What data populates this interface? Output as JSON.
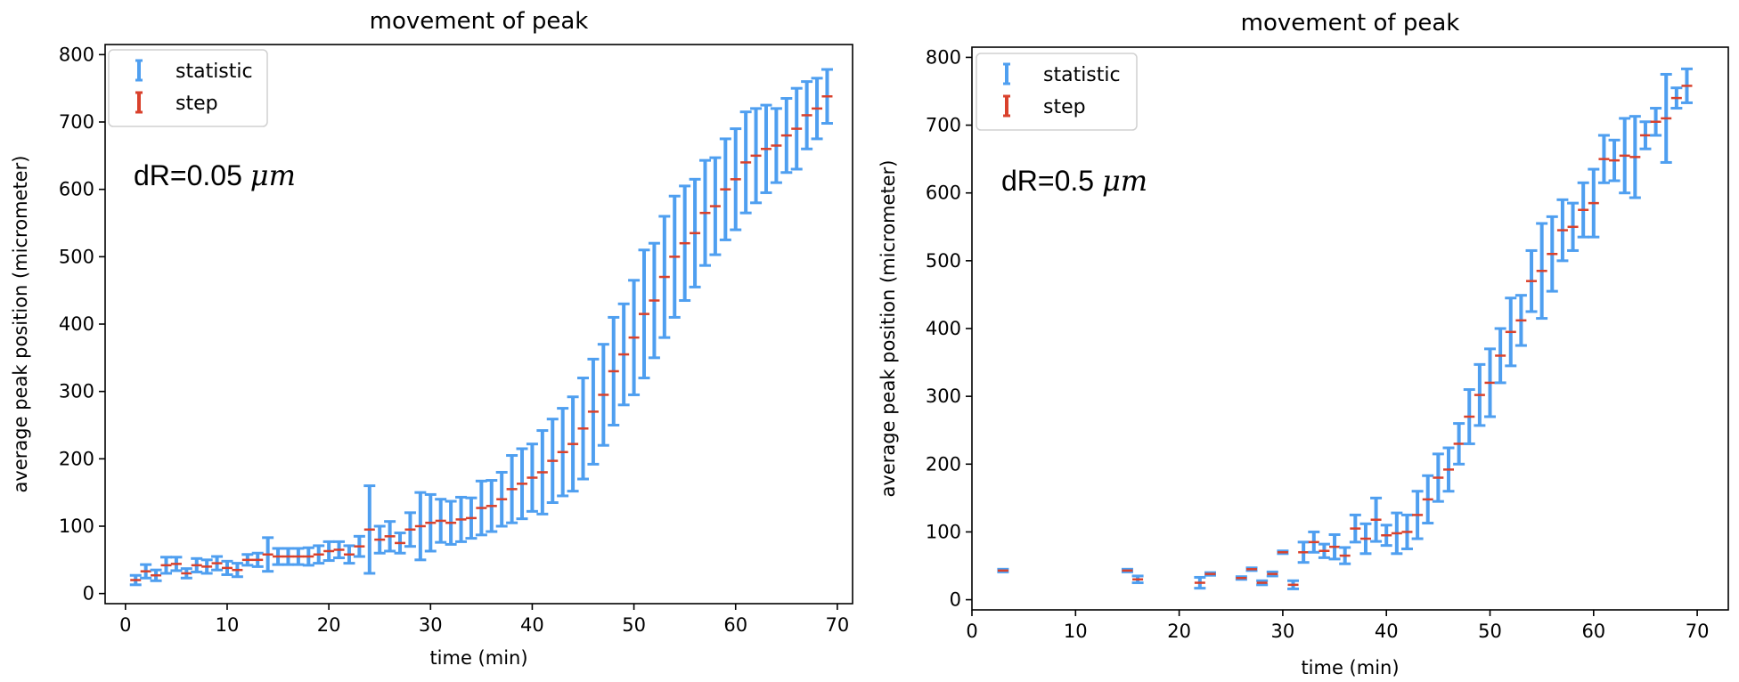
{
  "chart_data": [
    {
      "type": "errorbar",
      "title": "movement of peak",
      "xlabel": "time (min)",
      "ylabel": "average peak position (micrometer)",
      "xlim": [
        -2,
        71.5
      ],
      "ylim": [
        -15,
        815
      ],
      "xticks": [
        "0",
        "10",
        "20",
        "30",
        "40",
        "50",
        "60",
        "70"
      ],
      "yticks": [
        "0",
        "100",
        "200",
        "300",
        "400",
        "500",
        "600",
        "700",
        "800"
      ],
      "grid": false,
      "legend_position": "top-left",
      "annotation": {
        "text": "dR=0.05 ",
        "unit": "μm"
      },
      "legend": [
        {
          "name": "statistic",
          "color": "#4f9ff0"
        },
        {
          "name": "step",
          "color": "#d9412c"
        }
      ],
      "series": [
        {
          "name": "statistic",
          "color": "#4f9ff0",
          "points": [
            [
              1,
              20,
              7
            ],
            [
              2,
              33,
              10
            ],
            [
              3,
              27,
              8
            ],
            [
              4,
              42,
              12
            ],
            [
              5,
              44,
              10
            ],
            [
              6,
              30,
              7
            ],
            [
              7,
              42,
              10
            ],
            [
              8,
              40,
              10
            ],
            [
              9,
              45,
              10
            ],
            [
              10,
              38,
              10
            ],
            [
              11,
              35,
              10
            ],
            [
              12,
              50,
              8
            ],
            [
              13,
              50,
              10
            ],
            [
              14,
              58,
              25
            ],
            [
              15,
              55,
              12
            ],
            [
              16,
              55,
              12
            ],
            [
              17,
              55,
              12
            ],
            [
              18,
              55,
              13
            ],
            [
              19,
              58,
              13
            ],
            [
              20,
              63,
              14
            ],
            [
              21,
              65,
              12
            ],
            [
              22,
              58,
              13
            ],
            [
              23,
              70,
              15
            ],
            [
              24,
              95,
              65
            ],
            [
              25,
              80,
              20
            ],
            [
              26,
              85,
              22
            ],
            [
              27,
              75,
              15
            ],
            [
              28,
              95,
              25
            ],
            [
              29,
              100,
              50
            ],
            [
              30,
              105,
              42
            ],
            [
              31,
              108,
              32
            ],
            [
              32,
              105,
              32
            ],
            [
              33,
              110,
              33
            ],
            [
              34,
              112,
              30
            ],
            [
              35,
              127,
              40
            ],
            [
              36,
              130,
              38
            ],
            [
              37,
              140,
              40
            ],
            [
              38,
              155,
              50
            ],
            [
              39,
              163,
              52
            ],
            [
              40,
              172,
              50
            ],
            [
              41,
              180,
              62
            ],
            [
              42,
              197,
              62
            ],
            [
              43,
              210,
              65
            ],
            [
              44,
              222,
              70
            ],
            [
              45,
              245,
              75
            ],
            [
              46,
              270,
              78
            ],
            [
              47,
              295,
              75
            ],
            [
              48,
              330,
              80
            ],
            [
              49,
              355,
              75
            ],
            [
              50,
              380,
              85
            ],
            [
              51,
              415,
              95
            ],
            [
              52,
              435,
              85
            ],
            [
              53,
              470,
              90
            ],
            [
              54,
              500,
              90
            ],
            [
              55,
              520,
              85
            ],
            [
              56,
              535,
              80
            ],
            [
              57,
              565,
              78
            ],
            [
              58,
              575,
              72
            ],
            [
              59,
              600,
              75
            ],
            [
              60,
              615,
              75
            ],
            [
              61,
              640,
              75
            ],
            [
              62,
              650,
              70
            ],
            [
              63,
              660,
              65
            ],
            [
              64,
              665,
              55
            ],
            [
              65,
              680,
              55
            ],
            [
              66,
              690,
              60
            ],
            [
              67,
              710,
              50
            ],
            [
              68,
              720,
              45
            ],
            [
              69,
              738,
              40
            ]
          ]
        },
        {
          "name": "step",
          "color": "#d9412c"
        }
      ]
    },
    {
      "type": "errorbar",
      "title": "movement of peak",
      "xlabel": "time (min)",
      "ylabel": "average peak position (micrometer)",
      "xlim": [
        0,
        73
      ],
      "ylim": [
        -15,
        815
      ],
      "xticks": [
        "0",
        "10",
        "20",
        "30",
        "40",
        "50",
        "60",
        "70"
      ],
      "yticks": [
        "0",
        "100",
        "200",
        "300",
        "400",
        "500",
        "600",
        "700",
        "800"
      ],
      "grid": false,
      "legend_position": "top-left",
      "annotation": {
        "text": "dR=0.5 ",
        "unit": "μm"
      },
      "legend": [
        {
          "name": "statistic",
          "color": "#4f9ff0"
        },
        {
          "name": "step",
          "color": "#d9412c"
        }
      ],
      "series": [
        {
          "name": "statistic",
          "color": "#4f9ff0",
          "points": [
            [
              3,
              43,
              2
            ],
            [
              15,
              43,
              2
            ],
            [
              16,
              30,
              5
            ],
            [
              22,
              25,
              8
            ],
            [
              23,
              38,
              2
            ],
            [
              26,
              32,
              2
            ],
            [
              27,
              45,
              2
            ],
            [
              28,
              25,
              3
            ],
            [
              29,
              38,
              3
            ],
            [
              30,
              70,
              2
            ],
            [
              31,
              22,
              6
            ],
            [
              32,
              70,
              15
            ],
            [
              33,
              85,
              15
            ],
            [
              34,
              72,
              10
            ],
            [
              35,
              78,
              18
            ],
            [
              36,
              65,
              12
            ],
            [
              37,
              105,
              20
            ],
            [
              38,
              90,
              22
            ],
            [
              39,
              118,
              32
            ],
            [
              40,
              95,
              15
            ],
            [
              41,
              98,
              30
            ],
            [
              42,
              100,
              25
            ],
            [
              43,
              125,
              35
            ],
            [
              44,
              148,
              35
            ],
            [
              45,
              180,
              35
            ],
            [
              46,
              192,
              32
            ],
            [
              47,
              230,
              30
            ],
            [
              48,
              270,
              40
            ],
            [
              49,
              302,
              45
            ],
            [
              50,
              320,
              50
            ],
            [
              51,
              360,
              40
            ],
            [
              52,
              395,
              50
            ],
            [
              53,
              412,
              37
            ],
            [
              54,
              470,
              45
            ],
            [
              55,
              485,
              70
            ],
            [
              56,
              510,
              55
            ],
            [
              57,
              545,
              45
            ],
            [
              58,
              550,
              35
            ],
            [
              59,
              575,
              40
            ],
            [
              60,
              585,
              50
            ],
            [
              61,
              650,
              35
            ],
            [
              62,
              648,
              30
            ],
            [
              63,
              655,
              55
            ],
            [
              64,
              653,
              60
            ],
            [
              65,
              685,
              20
            ],
            [
              66,
              705,
              20
            ],
            [
              67,
              710,
              65
            ],
            [
              68,
              740,
              15
            ],
            [
              69,
              758,
              25
            ]
          ]
        },
        {
          "name": "step",
          "color": "#d9412c"
        }
      ]
    }
  ]
}
